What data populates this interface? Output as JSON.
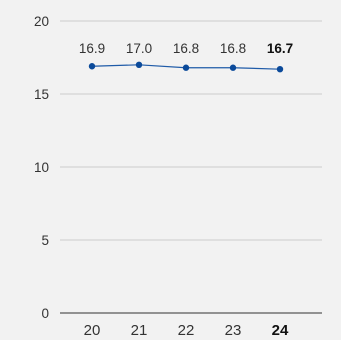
{
  "chart_data": {
    "type": "line",
    "categories": [
      "20",
      "21",
      "22",
      "23",
      "24"
    ],
    "series": [
      {
        "values": [
          16.9,
          17.0,
          16.8,
          16.8,
          16.7
        ]
      }
    ],
    "data_labels": [
      "16.9",
      "17.0",
      "16.8",
      "16.8",
      "16.7"
    ],
    "highlight_index": 4,
    "y_ticks": [
      "0",
      "5",
      "10",
      "15",
      "20"
    ],
    "ylim": [
      0,
      20
    ],
    "grid": true,
    "colors": {
      "line": "#1f5ba8",
      "marker": "#0b4a9a",
      "grid": "#cccccc",
      "axis": "#333333",
      "background": "#f2f2f2"
    }
  }
}
